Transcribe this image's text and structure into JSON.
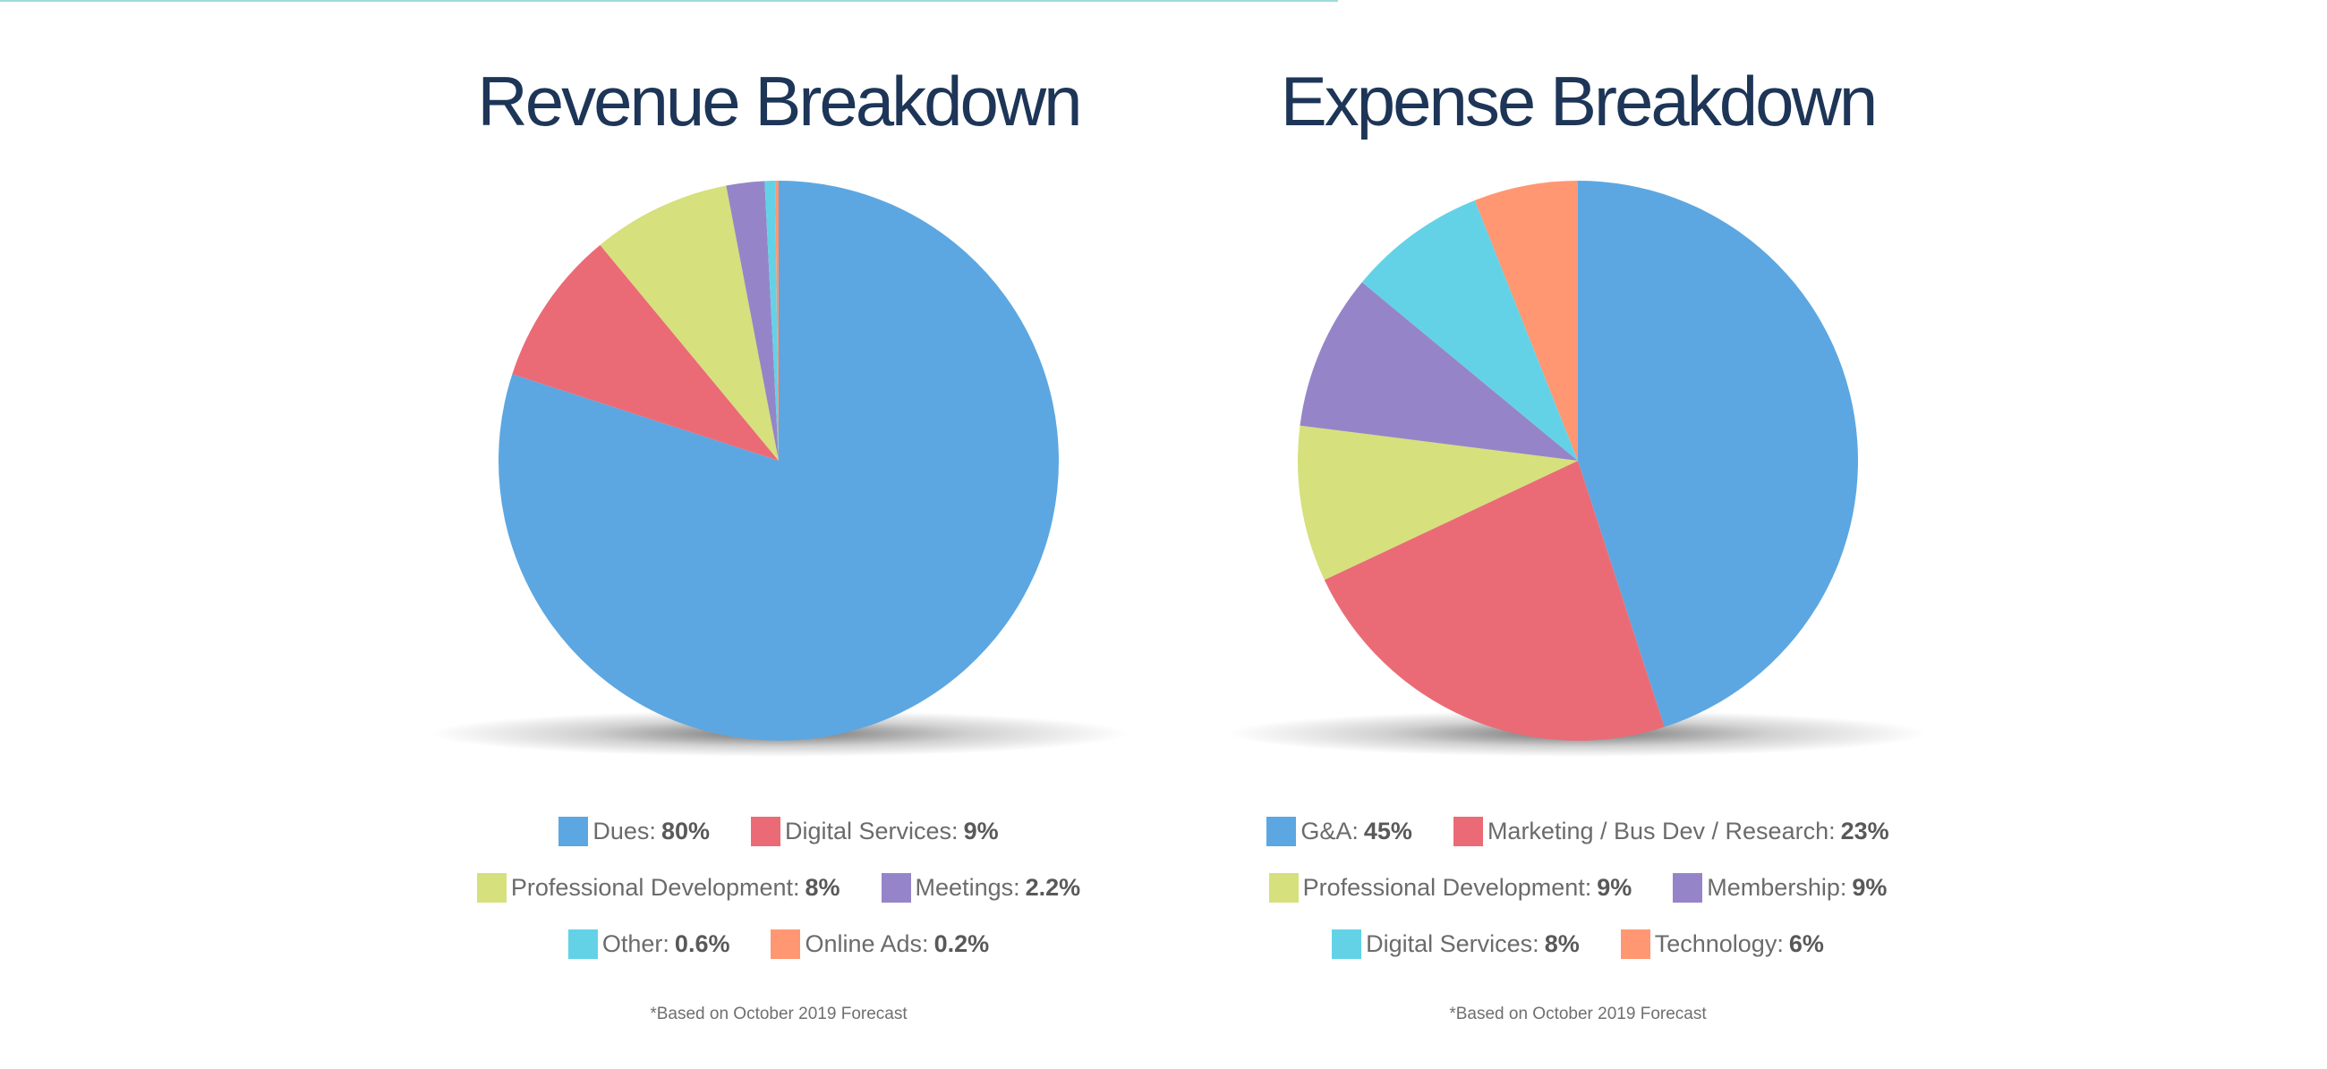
{
  "chart_data": [
    {
      "type": "pie",
      "title": "Revenue Breakdown",
      "start_angle_deg": 0,
      "direction": "clockwise",
      "slices": [
        {
          "name": "Dues",
          "label": "Dues:",
          "value": 80,
          "display": "80%",
          "color": "#5ca7e1"
        },
        {
          "name": "Digital Services",
          "label": "Digital Services:",
          "value": 9,
          "display": "9%",
          "color": "#ea6b76"
        },
        {
          "name": "Professional Development",
          "label": "Professional Development:",
          "value": 8,
          "display": "8%",
          "color": "#d6e07c"
        },
        {
          "name": "Meetings",
          "label": "Meetings:",
          "value": 2.2,
          "display": "2.2%",
          "color": "#9585c8"
        },
        {
          "name": "Other",
          "label": "Other:",
          "value": 0.6,
          "display": "0.6%",
          "color": "#63d2e6"
        },
        {
          "name": "Online Ads",
          "label": "Online Ads:",
          "value": 0.2,
          "display": "0.2%",
          "color": "#ff9773"
        }
      ],
      "legend_rows": [
        [
          0,
          1
        ],
        [
          2,
          3
        ],
        [
          4,
          5
        ]
      ],
      "footnote": "*Based on October 2019 Forecast"
    },
    {
      "type": "pie",
      "title": "Expense Breakdown",
      "start_angle_deg": 0,
      "direction": "clockwise",
      "slices": [
        {
          "name": "G&A",
          "label": "G&A:",
          "value": 45,
          "display": "45%",
          "color": "#5ca7e1"
        },
        {
          "name": "Marketing / Bus Dev / Research",
          "label": "Marketing / Bus Dev / Research:",
          "value": 23,
          "display": "23%",
          "color": "#ea6b76"
        },
        {
          "name": "Professional Development",
          "label": "Professional Development:",
          "value": 9,
          "display": "9%",
          "color": "#d6e07c"
        },
        {
          "name": "Membership",
          "label": "Membership:",
          "value": 9,
          "display": "9%",
          "color": "#9585c8"
        },
        {
          "name": "Digital Services",
          "label": "Digital Services:",
          "value": 8,
          "display": "8%",
          "color": "#63d2e6"
        },
        {
          "name": "Technology",
          "label": "Technology:",
          "value": 6,
          "display": "6%",
          "color": "#ff9773"
        }
      ],
      "legend_rows": [
        [
          0,
          1
        ],
        [
          2,
          3
        ],
        [
          4,
          5
        ]
      ],
      "footnote": "*Based on October 2019 Forecast"
    }
  ]
}
